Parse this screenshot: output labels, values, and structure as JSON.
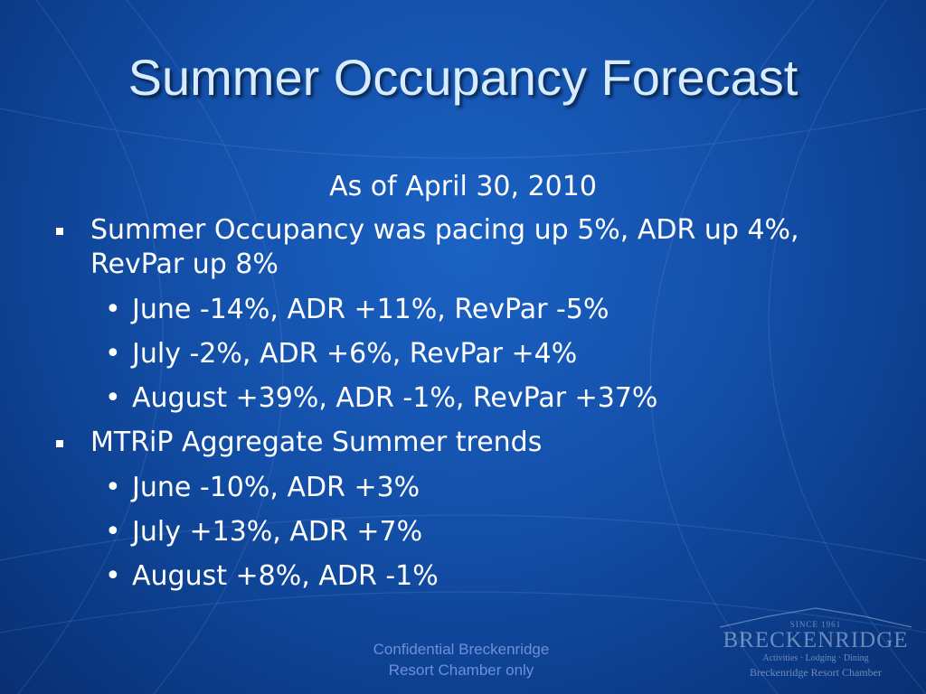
{
  "slide": {
    "title": "Summer Occupancy Forecast",
    "subtitle": "As of April 30, 2010",
    "bullets": [
      {
        "text": "Summer Occupancy was pacing up 5%, ADR up 4%, RevPar up 8%",
        "sub": [
          "June -14%, ADR +11%, RevPar -5%",
          "July -2%, ADR +6%, RevPar +4%",
          "August +39%, ADR -1%, RevPar +37%"
        ]
      },
      {
        "text": "MTRiP Aggregate Summer trends",
        "sub": [
          "June -10%, ADR +3%",
          "July +13%, ADR +7%",
          "August +8%, ADR -1%"
        ]
      }
    ],
    "sub_marker": "•"
  },
  "footer": {
    "line1": "Confidential Breckenridge",
    "line2": "Resort Chamber only"
  },
  "logo": {
    "since": "SINCE 1961",
    "name": "BRECKENRIDGE",
    "tagline": "Activities · Lodging · Dining",
    "org": "Breckenridge Resort Chamber"
  },
  "colors": {
    "background": "#134fa8",
    "title": "#d8ecff",
    "footer": "#6f8fd8"
  }
}
